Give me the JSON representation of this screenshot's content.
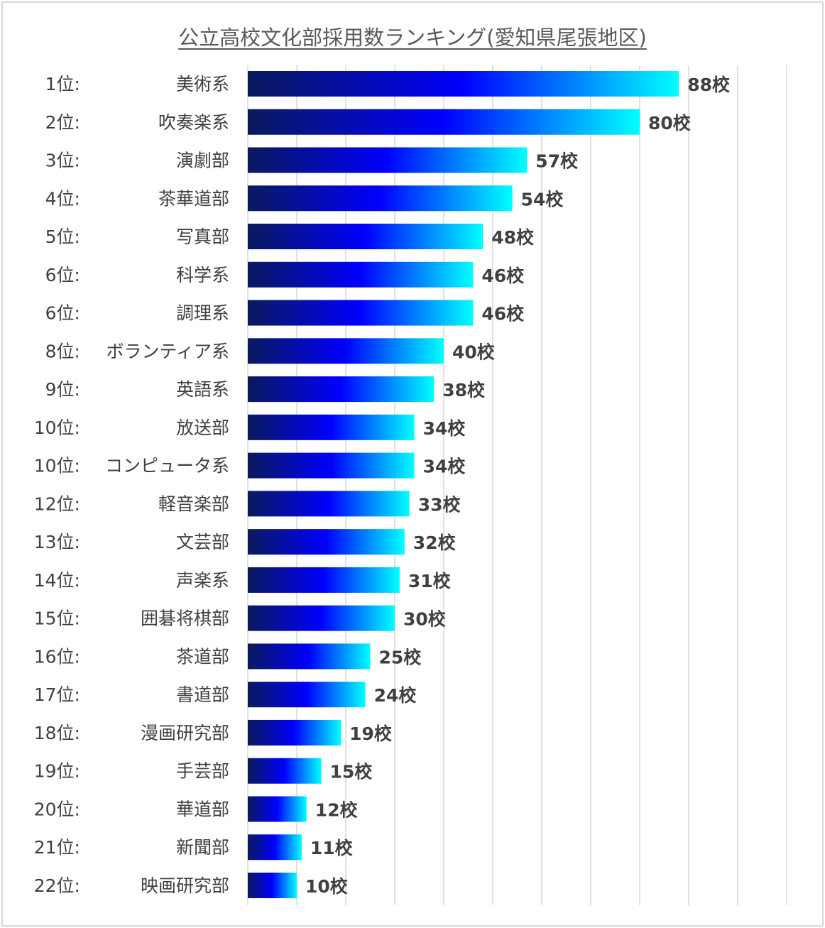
{
  "chart_data": {
    "type": "bar",
    "orientation": "horizontal",
    "title": "公立高校文化部採用数ランキング(愛知県尾張地区)",
    "xlim": [
      0,
      110
    ],
    "grid": true,
    "value_suffix": "校",
    "ranks": [
      "1位:",
      "2位:",
      "3位:",
      "4位:",
      "5位:",
      "6位:",
      "6位:",
      "8位:",
      "9位:",
      "10位:",
      "10位:",
      "12位:",
      "13位:",
      "14位:",
      "15位:",
      "16位:",
      "17位:",
      "18位:",
      "19位:",
      "20位:",
      "21位:",
      "22位:"
    ],
    "categories": [
      "美術系",
      "吹奏楽系",
      "演劇部",
      "茶華道部",
      "写真部",
      "科学系",
      "調理系",
      "ボランティア系",
      "英語系",
      "放送部",
      "コンピュータ系",
      "軽音楽部",
      "文芸部",
      "声楽系",
      "囲碁将棋部",
      "茶道部",
      "書道部",
      "漫画研究部",
      "手芸部",
      "華道部",
      "新聞部",
      "映画研究部"
    ],
    "values": [
      88,
      80,
      57,
      54,
      48,
      46,
      46,
      40,
      38,
      34,
      34,
      33,
      32,
      31,
      30,
      25,
      24,
      19,
      15,
      12,
      11,
      10
    ],
    "colors": {
      "start": "#0a1a5c",
      "mid": "#0000ff",
      "end": "#00ffff",
      "grid": "#d9d9d9",
      "text": "#404040"
    }
  }
}
